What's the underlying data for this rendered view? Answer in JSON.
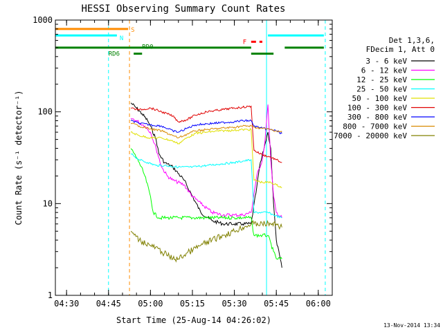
{
  "chart_data": {
    "type": "line",
    "title": "HESSI Observing Summary Count Rates",
    "xlabel": "Start Time (25-Aug-14 04:26:02)",
    "ylabel": "Count Rate (s⁻¹ detector⁻¹)",
    "y_scale": "log",
    "ylim": [
      1,
      1000
    ],
    "xlim_minutes": [
      266,
      365
    ],
    "x_ticks": [
      {
        "label": "04:30",
        "value": 270
      },
      {
        "label": "04:45",
        "value": 285
      },
      {
        "label": "05:00",
        "value": 300
      },
      {
        "label": "05:15",
        "value": 315
      },
      {
        "label": "05:30",
        "value": 330
      },
      {
        "label": "05:45",
        "value": 345
      },
      {
        "label": "06:00",
        "value": 360
      }
    ],
    "y_ticks": [
      {
        "label": "1",
        "value": 1
      },
      {
        "label": "10",
        "value": 10
      },
      {
        "label": "100",
        "value": 100
      },
      {
        "label": "1000",
        "value": 1000
      }
    ],
    "legend_header": [
      "Det 1,3,6,",
      "FDecim 1, Att 0"
    ],
    "legend_position": "right",
    "series": [
      {
        "name": "3 - 6 keV",
        "color": "#000000",
        "x": [
          293,
          295,
          297,
          299,
          300,
          302,
          303,
          305,
          308,
          312,
          315,
          318,
          322,
          326,
          330,
          333,
          336,
          338,
          339,
          341,
          342,
          343,
          344,
          345,
          347
        ],
        "y": [
          125,
          110,
          95,
          80,
          70,
          50,
          35,
          28,
          25,
          18,
          12,
          8,
          6.5,
          6,
          6,
          6,
          6,
          15,
          25,
          45,
          60,
          40,
          10,
          4,
          2
        ]
      },
      {
        "name": "6 - 12 keV",
        "color": "#ff00ff",
        "x": [
          293,
          295,
          298,
          300,
          302,
          304,
          306,
          308,
          312,
          315,
          318,
          322,
          326,
          330,
          333,
          336,
          338,
          340,
          341,
          342,
          343,
          344,
          345,
          347
        ],
        "y": [
          85,
          80,
          70,
          60,
          40,
          25,
          20,
          18,
          16,
          12,
          10,
          8,
          7.5,
          7.5,
          7.5,
          8,
          20,
          30,
          50,
          120,
          30,
          12,
          8,
          7
        ]
      },
      {
        "name": "12 - 25 keV",
        "color": "#00ff00",
        "x": [
          293,
          296,
          298,
          300,
          301,
          303,
          306,
          310,
          315,
          320,
          325,
          330,
          333,
          336,
          337,
          340,
          342,
          344,
          345,
          347
        ],
        "y": [
          40,
          28,
          20,
          12,
          8,
          7,
          7,
          7,
          7,
          7,
          7,
          7,
          7,
          7,
          4.5,
          4.5,
          4.5,
          3,
          2.5,
          2.5
        ]
      },
      {
        "name": "25 - 50 keV",
        "color": "#00ffff",
        "x": [
          293,
          296,
          299,
          302,
          305,
          310,
          315,
          320,
          325,
          330,
          333,
          336,
          337,
          340,
          342,
          344,
          347
        ],
        "y": [
          35,
          30,
          28,
          26,
          26,
          25,
          25,
          26,
          27,
          28,
          29,
          30,
          8,
          8,
          8,
          7.5,
          7
        ]
      },
      {
        "name": "50 - 100 keV",
        "color": "#e0e000",
        "x": [
          293,
          296,
          300,
          304,
          308,
          310,
          313,
          316,
          320,
          325,
          330,
          333,
          336,
          337,
          340,
          343,
          345,
          347
        ],
        "y": [
          60,
          55,
          52,
          52,
          48,
          45,
          52,
          58,
          60,
          62,
          63,
          64,
          64,
          18,
          17,
          17,
          16,
          15
        ]
      },
      {
        "name": "100 - 300 keV",
        "color": "#e00000",
        "x": [
          293,
          296,
          300,
          304,
          308,
          310,
          313,
          316,
          320,
          325,
          330,
          333,
          336,
          337,
          340,
          343,
          345,
          347
        ],
        "y": [
          110,
          105,
          110,
          100,
          90,
          78,
          82,
          92,
          100,
          105,
          110,
          112,
          115,
          38,
          34,
          32,
          30,
          28
        ]
      },
      {
        "name": "300 - 800 keV",
        "color": "#0000ff",
        "x": [
          293,
          296,
          300,
          304,
          308,
          310,
          313,
          316,
          320,
          325,
          330,
          333,
          336,
          337,
          340,
          343,
          345,
          347
        ],
        "y": [
          80,
          75,
          72,
          70,
          62,
          60,
          66,
          72,
          74,
          76,
          78,
          80,
          80,
          70,
          66,
          64,
          62,
          58
        ]
      },
      {
        "name": "800 - 7000 keV",
        "color": "#d98a00",
        "x": [
          293,
          296,
          300,
          304,
          308,
          310,
          313,
          316,
          320,
          325,
          330,
          333,
          336,
          337,
          340,
          343,
          345,
          347
        ],
        "y": [
          75,
          70,
          65,
          62,
          55,
          52,
          57,
          62,
          64,
          66,
          68,
          70,
          70,
          68,
          66,
          64,
          62,
          60
        ]
      },
      {
        "name": "7000 - 20000 keV",
        "color": "#808000",
        "x": [
          293,
          296,
          300,
          304,
          308,
          310,
          314,
          318,
          322,
          326,
          330,
          333,
          336,
          337,
          340,
          343,
          345,
          347
        ],
        "y": [
          5,
          4,
          3.5,
          3,
          2.5,
          2.5,
          3,
          3.5,
          4,
          4.5,
          5,
          5.5,
          6,
          6,
          6,
          6,
          6,
          5.5
        ]
      }
    ],
    "spacecraft_flags": [
      {
        "label": "S",
        "color": "#ff8c00",
        "level": 800,
        "segments": [
          [
            266,
            292
          ]
        ]
      },
      {
        "label": "N",
        "color": "#00ffff",
        "level": 680,
        "segments": [
          [
            266,
            288
          ],
          [
            342,
            362
          ]
        ]
      },
      {
        "label": "F",
        "color": "#ff0000",
        "level": 580,
        "dashed": true,
        "segments": [
          [
            336,
            340
          ]
        ]
      },
      {
        "label": "RD0",
        "color": "#008000",
        "level": 500,
        "segments": [
          [
            266,
            336
          ],
          [
            348,
            362
          ]
        ]
      },
      {
        "label": "RD6",
        "color": "#008000",
        "level": 430,
        "segments": [
          [
            294,
            297
          ],
          [
            336,
            344
          ]
        ]
      }
    ],
    "vertical_markers": [
      {
        "value": 266,
        "color": "#00ffff",
        "dashed": false
      },
      {
        "value": 285,
        "color": "#00ffff",
        "dashed": true
      },
      {
        "value": 292.5,
        "color": "#ff8c00",
        "dashed": true
      },
      {
        "value": 341.5,
        "color": "#00ffff",
        "dashed": false
      },
      {
        "value": 362.5,
        "color": "#00ffff",
        "dashed": true
      }
    ]
  },
  "footer": {
    "timestamp": "13-Nov-2014 13:34"
  }
}
